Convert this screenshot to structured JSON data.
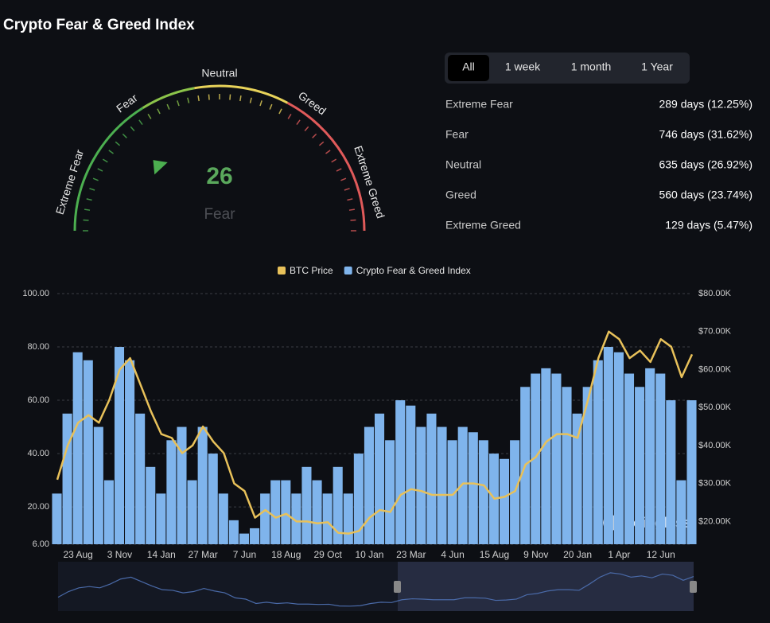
{
  "header": {
    "title": "Crypto Fear & Greed Index"
  },
  "gauge": {
    "labels": [
      "Extreme Fear",
      "Fear",
      "Neutral",
      "Greed",
      "Extreme Greed"
    ],
    "value": 26,
    "classification": "Fear"
  },
  "tabs": [
    "All",
    "1 week",
    "1 month",
    "1 Year"
  ],
  "stats": [
    {
      "name": "Extreme Fear",
      "value": "289 days (12.25%)"
    },
    {
      "name": "Fear",
      "value": "746 days (31.62%)"
    },
    {
      "name": "Neutral",
      "value": "635 days (26.92%)"
    },
    {
      "name": "Greed",
      "value": "560 days (23.74%)"
    },
    {
      "name": "Extreme Greed",
      "value": "129 days (5.47%)"
    }
  ],
  "watermark": "coinglass",
  "chart_data": {
    "type": "bar",
    "categories": [
      null,
      null,
      "23 Aug",
      null,
      null,
      null,
      "3 Nov",
      null,
      null,
      null,
      "14 Jan",
      null,
      null,
      null,
      "27 Mar",
      null,
      null,
      null,
      "7 Jun",
      null,
      null,
      null,
      "18 Aug",
      null,
      null,
      null,
      "29 Oct",
      null,
      null,
      null,
      "10 Jan",
      null,
      null,
      null,
      "23 Mar",
      null,
      null,
      null,
      "4 Jun",
      null,
      null,
      null,
      "15 Aug",
      null,
      null,
      null,
      "9 Nov",
      null,
      null,
      null,
      "20 Jan",
      null,
      null,
      null,
      "1 Apr",
      null,
      null,
      null,
      "12 Jun",
      null,
      null,
      null
    ],
    "series": [
      {
        "name": "BTC Price",
        "type": "line",
        "axis": "y2",
        "color": "#e8c15a",
        "values": [
          31000,
          40000,
          46000,
          48000,
          46000,
          52000,
          60000,
          63000,
          56000,
          49000,
          43000,
          42000,
          38000,
          40000,
          45000,
          41000,
          38000,
          30000,
          28000,
          21000,
          23000,
          21000,
          22000,
          20000,
          20000,
          19500,
          19800,
          17000,
          16800,
          17500,
          21000,
          23000,
          22500,
          27000,
          28500,
          28000,
          27000,
          27000,
          27000,
          30000,
          30000,
          29500,
          26000,
          26500,
          28000,
          35000,
          37000,
          41000,
          43000,
          43000,
          42000,
          52000,
          63000,
          70000,
          68000,
          63000,
          65000,
          62000,
          68000,
          66000,
          58000,
          64000
        ]
      },
      {
        "name": "Crypto Fear & Greed Index",
        "type": "bar",
        "color": "#7fb4ec",
        "values": [
          25,
          55,
          78,
          75,
          50,
          30,
          80,
          75,
          55,
          35,
          25,
          45,
          50,
          30,
          50,
          40,
          25,
          15,
          10,
          12,
          25,
          30,
          30,
          25,
          35,
          30,
          25,
          35,
          25,
          40,
          50,
          55,
          45,
          60,
          58,
          50,
          55,
          50,
          45,
          50,
          48,
          45,
          40,
          38,
          45,
          65,
          70,
          72,
          70,
          65,
          55,
          65,
          75,
          80,
          78,
          70,
          65,
          72,
          70,
          60,
          30,
          60
        ]
      }
    ],
    "ylim": [
      6,
      100
    ],
    "yticks": [
      {
        "value": 6,
        "label": "6.00"
      },
      {
        "value": 20,
        "label": "20.00"
      },
      {
        "value": 40,
        "label": "40.00"
      },
      {
        "value": 60,
        "label": "60.00"
      },
      {
        "value": 80,
        "label": "80.00"
      },
      {
        "value": 100,
        "label": "100.00"
      }
    ],
    "y2lim": [
      14000,
      80000
    ],
    "y2ticks": [
      {
        "value": 20000,
        "label": "$20.00K"
      },
      {
        "value": 30000,
        "label": "$30.00K"
      },
      {
        "value": 40000,
        "label": "$40.00K"
      },
      {
        "value": 50000,
        "label": "$50.00K"
      },
      {
        "value": 60000,
        "label": "$60.00K"
      },
      {
        "value": 70000,
        "label": "$70.00K"
      },
      {
        "value": 80000,
        "label": "$80.00K"
      }
    ],
    "grid": true,
    "legend": "top"
  }
}
